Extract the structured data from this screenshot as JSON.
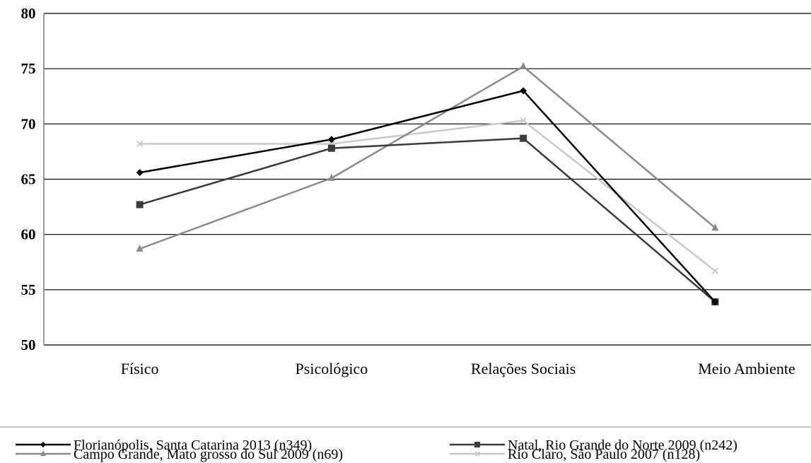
{
  "chart_data": {
    "type": "line",
    "categories": [
      "Físico",
      "Psicológico",
      "Relações Sociais",
      "Meio Ambiente"
    ],
    "ylim": [
      50,
      80
    ],
    "yticks": [
      50,
      55,
      60,
      65,
      70,
      75,
      80
    ],
    "grid": true,
    "legend_position": "bottom",
    "series": [
      {
        "name": "Florianópolis, Santa Catarina 2013 (n349)",
        "values": [
          65.6,
          68.6,
          73.0,
          53.9
        ],
        "color": "#000000",
        "marker": "diamond"
      },
      {
        "name": "Natal, Rio Grande do Norte 2009 (n242)",
        "values": [
          62.7,
          67.8,
          68.7,
          53.9
        ],
        "color": "#3a3a3a",
        "marker": "square"
      },
      {
        "name": "Campo Grande, Mato grosso do Sul 2009 (n69)",
        "values": [
          58.7,
          65.1,
          75.2,
          60.6
        ],
        "color": "#8a8a8a",
        "marker": "triangle"
      },
      {
        "name": "Rio Claro, São Paulo 2007 (n128)",
        "values": [
          68.2,
          68.2,
          70.3,
          56.7
        ],
        "color": "#c8c8c8",
        "marker": "x"
      }
    ]
  }
}
